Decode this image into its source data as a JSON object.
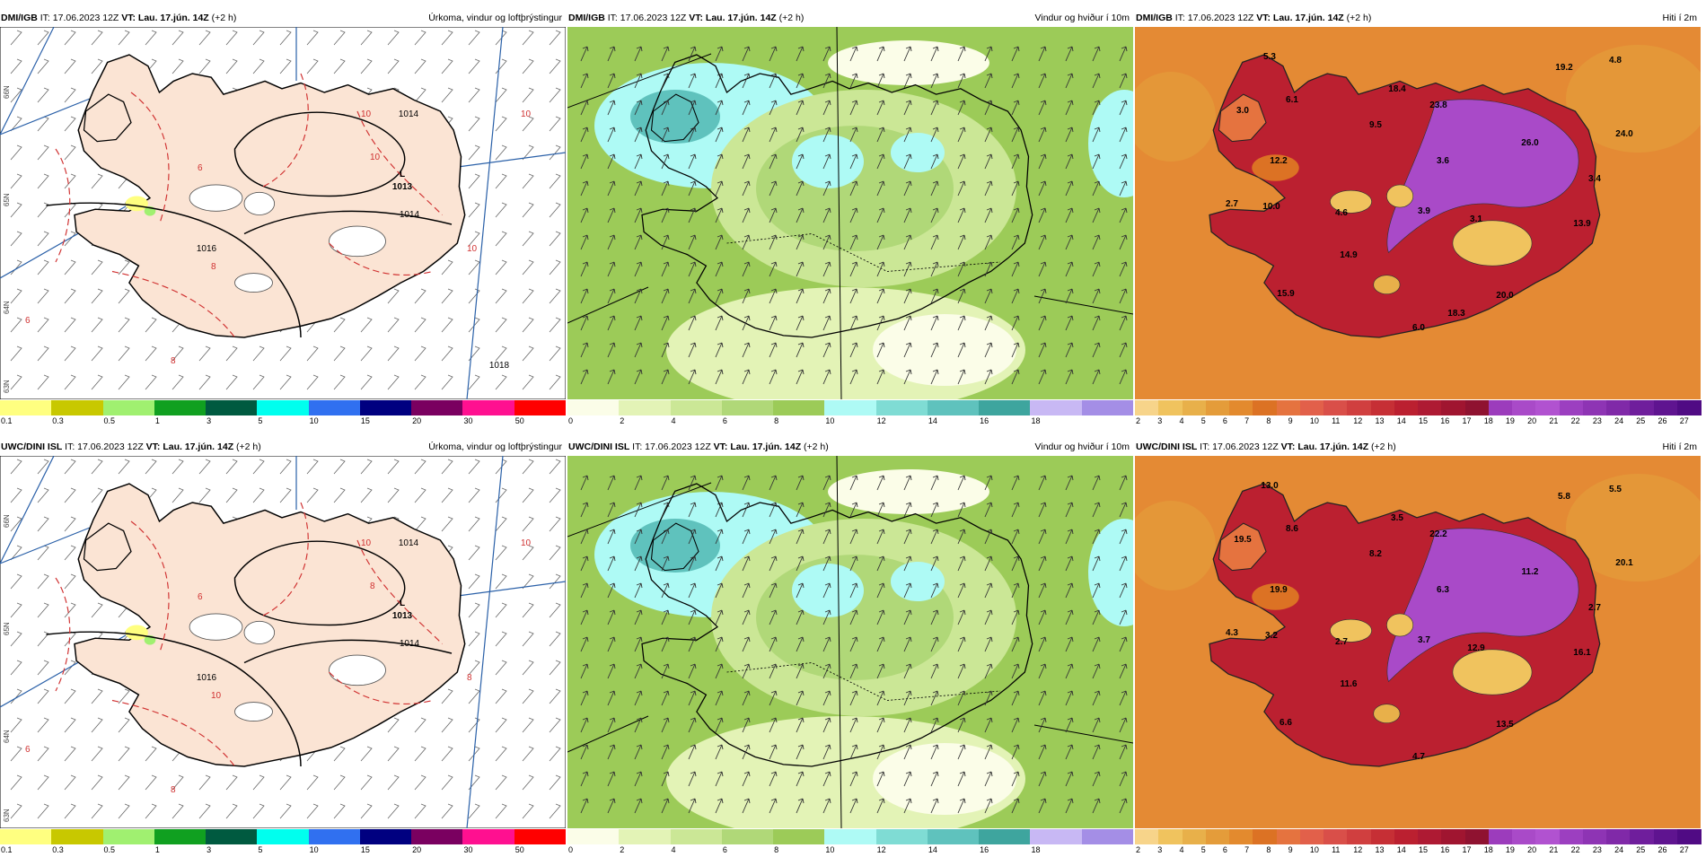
{
  "rows": [
    {
      "source": "DMI/IGB",
      "init": "IT: 17.06.2023 12Z",
      "valid": "VT: Lau. 17.jún. 14Z",
      "offset": "(+2 h)",
      "panels": [
        {
          "kind": "precip",
          "title": "Úrkoma, vindur og loftþrýstingur",
          "lows": [
            {
              "label": "L",
              "value": "1013"
            }
          ],
          "isobar_labels": [
            "1014",
            "1014",
            "1016",
            "1018"
          ],
          "temp_labels": [
            "10",
            "10",
            "10",
            "10",
            "8",
            "8",
            "6",
            "6"
          ],
          "lat_labels": [
            "66N",
            "65N",
            "64N",
            "63N"
          ]
        },
        {
          "kind": "wind",
          "title": "Vindur og hviður í 10m"
        },
        {
          "kind": "temp",
          "title": "Hiti í 2m",
          "values": [
            "5.3",
            "4.8",
            "3.0",
            "6.1",
            "19.2",
            "18.4",
            "23.8",
            "9.5",
            "24.0",
            "26.0",
            "12.2",
            "3.6",
            "3.4",
            "2.7",
            "10.0",
            "4.6",
            "3.9",
            "3.1",
            "13.9",
            "14.9",
            "15.9",
            "20.0",
            "6.0",
            "18.3"
          ]
        }
      ]
    },
    {
      "source": "UWC/DINI ISL",
      "init": "IT: 17.06.2023 12Z",
      "valid": "VT: Lau. 17.jún. 14Z",
      "offset": "(+2 h)",
      "panels": [
        {
          "kind": "precip",
          "title": "Úrkoma, vindur og loftþrýstingur",
          "lows": [
            {
              "label": "L",
              "value": "1013"
            }
          ],
          "isobar_labels": [
            "1014",
            "1014",
            "1016"
          ],
          "temp_labels": [
            "8",
            "8",
            "10",
            "10",
            "10",
            "8",
            "6",
            "6"
          ],
          "lat_labels": [
            "66N",
            "65N",
            "64N",
            "63N"
          ]
        },
        {
          "kind": "wind",
          "title": "Vindur og hviður í 10m"
        },
        {
          "kind": "temp",
          "title": "Hiti í 2m",
          "values": [
            "13.0",
            "5.5",
            "19.5",
            "8.6",
            "5.8",
            "3.5",
            "22.2",
            "8.2",
            "20.1",
            "11.2",
            "19.9",
            "6.3",
            "2.7",
            "4.3",
            "3.2",
            "2.7",
            "3.7",
            "12.9",
            "16.1",
            "11.6",
            "6.6",
            "13.5",
            "4.7"
          ]
        }
      ]
    }
  ],
  "legends": {
    "precip": {
      "colors": [
        "#ffff80",
        "#c8c800",
        "#a0f070",
        "#10a020",
        "#005a40",
        "#00ffee",
        "#3070f0",
        "#000080",
        "#7a0060",
        "#ff1090",
        "#ff0000"
      ],
      "ticks": [
        "0.1",
        "0.3",
        "0.5",
        "1",
        "3",
        "5",
        "10",
        "15",
        "20",
        "30",
        "50"
      ]
    },
    "wind": {
      "colors": [
        "#fbfde8",
        "#e3f3b6",
        "#cbe796",
        "#b0d878",
        "#9ccb58",
        "#aefaf5",
        "#7fdcd4",
        "#5fc2bd",
        "#3ea59e",
        "#c8b8f4",
        "#a48ee6"
      ],
      "ticks": [
        "0",
        "2",
        "4",
        "6",
        "8",
        "10",
        "12",
        "14",
        "16",
        "18"
      ]
    },
    "temp": {
      "colors": [
        "#f7d48a",
        "#f0c35e",
        "#e8b04a",
        "#e49c3a",
        "#e38a2e",
        "#dc7224",
        "#e5733f",
        "#e2604a",
        "#d94f49",
        "#d03f3f",
        "#c62f35",
        "#bb2030",
        "#ae1a33",
        "#a01530",
        "#8f1230",
        "#9c3cbc",
        "#a94ac8",
        "#b152d0",
        "#9c3fc0",
        "#8e34b4",
        "#8029a8",
        "#6f1e9c",
        "#5f1490",
        "#500b84"
      ],
      "ticks": [
        "2",
        "3",
        "4",
        "5",
        "6",
        "7",
        "8",
        "9",
        "10",
        "11",
        "12",
        "13",
        "14",
        "15",
        "16",
        "17",
        "18",
        "19",
        "20",
        "21",
        "22",
        "23",
        "24",
        "25",
        "26",
        "27"
      ]
    }
  },
  "palette": {
    "land_precip": "#fbe4d4",
    "sea_temp": "#e48a34",
    "isobar": "#000000",
    "temp_contour": "#d03030",
    "meridian": "#2a60a8"
  }
}
